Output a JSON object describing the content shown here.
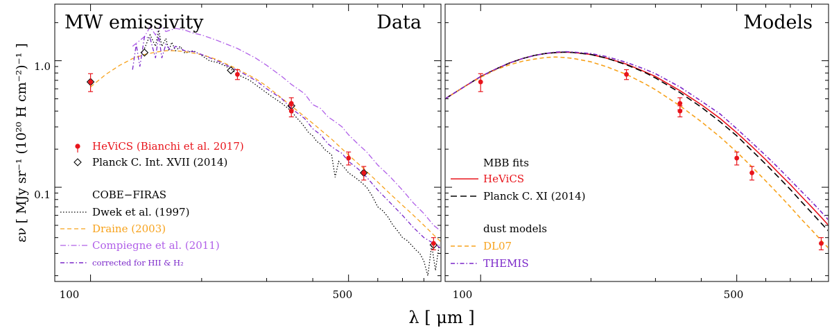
{
  "chart_data": [
    {
      "type": "line",
      "panel": "left",
      "title": "MW emissivity",
      "corner_label": "Data",
      "xlabel": "λ [ μm ]",
      "ylabel": "εν [ MJy sr⁻¹ (10²⁰ H cm⁻²)⁻¹ ]",
      "xscale": "log",
      "yscale": "log",
      "xlim": [
        80,
        890
      ],
      "ylim": [
        0.018,
        2.8
      ],
      "xticks": [
        {
          "v": 100,
          "label": "100"
        },
        {
          "v": 500,
          "label": "500"
        }
      ],
      "yticks": [
        {
          "v": 1.0,
          "label": "1.0"
        },
        {
          "v": 0.1,
          "label": "0.1"
        }
      ],
      "series": [
        {
          "name": "HeViCS (Bianchi et al. 2017)",
          "kind": "errorbar",
          "color": "#e8141b",
          "x": [
            100,
            250,
            350,
            350,
            500,
            550,
            850
          ],
          "y": [
            0.68,
            0.78,
            0.46,
            0.4,
            0.17,
            0.13,
            0.036
          ],
          "yerr": [
            0.11,
            0.07,
            0.05,
            0.04,
            0.02,
            0.016,
            0.004
          ]
        },
        {
          "name": "Planck C. Int. XVII (2014)",
          "kind": "diamond",
          "color": "#000000",
          "x": [
            100,
            140,
            240,
            350,
            550,
            850
          ],
          "y": [
            0.68,
            1.16,
            0.84,
            0.44,
            0.13,
            0.035
          ]
        },
        {
          "name": "Dwek et al. (1997)",
          "kind": "line",
          "dash": "1.5,2.5",
          "color": "#000000",
          "x": [
            140,
            145,
            150,
            153,
            156,
            160,
            163,
            166,
            170,
            175,
            180,
            190,
            200,
            210,
            220,
            230,
            240,
            250,
            270,
            290,
            310,
            330,
            350,
            360,
            370,
            380,
            390,
            400,
            410,
            420,
            430,
            440,
            450,
            460,
            470,
            480,
            490,
            500,
            520,
            540,
            560,
            580,
            600,
            620,
            640,
            660,
            680,
            700,
            720,
            740,
            760,
            780,
            800,
            820,
            840,
            860,
            880
          ],
          "y": [
            1.25,
            1.6,
            1.3,
            1.75,
            1.3,
            1.5,
            1.2,
            1.4,
            1.2,
            1.3,
            1.15,
            1.2,
            1.1,
            1.0,
            0.97,
            0.92,
            0.86,
            0.78,
            0.7,
            0.6,
            0.52,
            0.46,
            0.4,
            0.36,
            0.33,
            0.3,
            0.27,
            0.255,
            0.23,
            0.22,
            0.2,
            0.19,
            0.18,
            0.12,
            0.16,
            0.15,
            0.14,
            0.13,
            0.12,
            0.11,
            0.1,
            0.085,
            0.07,
            0.065,
            0.058,
            0.05,
            0.045,
            0.04,
            0.038,
            0.035,
            0.032,
            0.03,
            0.026,
            0.02,
            0.035,
            0.022,
            0.035
          ]
        },
        {
          "name": "Draine (2003)",
          "kind": "line",
          "dash": "6,4",
          "color": "#f7a21b",
          "x": [
            100,
            110,
            120,
            130,
            140,
            150,
            160,
            170,
            180,
            200,
            220,
            250,
            280,
            300,
            350,
            400,
            450,
            500,
            550,
            600,
            650,
            700,
            750,
            800,
            850,
            890
          ],
          "y": [
            0.62,
            0.78,
            0.92,
            1.04,
            1.12,
            1.17,
            1.2,
            1.2,
            1.18,
            1.12,
            1.02,
            0.86,
            0.72,
            0.63,
            0.44,
            0.32,
            0.24,
            0.18,
            0.14,
            0.11,
            0.088,
            0.072,
            0.06,
            0.05,
            0.042,
            0.037
          ]
        },
        {
          "name": "Compiegne et al. (2011)",
          "kind": "line",
          "dash": "8,3,1.5,3",
          "color": "#b05fe8",
          "x": [
            130,
            140,
            145,
            150,
            155,
            160,
            170,
            180,
            190,
            200,
            220,
            250,
            280,
            300,
            330,
            350,
            380,
            400,
            420,
            440,
            460,
            480,
            500,
            530,
            560,
            600,
            650,
            700,
            750,
            800,
            850,
            890
          ],
          "y": [
            1.3,
            1.55,
            1.85,
            1.6,
            1.9,
            1.7,
            1.8,
            1.75,
            1.65,
            1.6,
            1.45,
            1.25,
            1.05,
            0.92,
            0.75,
            0.65,
            0.55,
            0.45,
            0.42,
            0.36,
            0.33,
            0.3,
            0.26,
            0.22,
            0.19,
            0.15,
            0.12,
            0.095,
            0.075,
            0.062,
            0.05,
            0.045
          ]
        },
        {
          "name": "corrected for HII & H₂",
          "kind": "line",
          "dash": "6,3,1.5,3",
          "color": "#7a26c9",
          "x": [
            130,
            133,
            136,
            140,
            145,
            150,
            153,
            156,
            160,
            165,
            170,
            180,
            190,
            200,
            220,
            250,
            280,
            300,
            330,
            350,
            380,
            400,
            420,
            440,
            460,
            480,
            500,
            530,
            560,
            600,
            650,
            700,
            750,
            800,
            850,
            890
          ],
          "y": [
            0.85,
            1.35,
            0.9,
            1.55,
            1.5,
            1.05,
            1.6,
            1.05,
            1.35,
            1.2,
            1.3,
            1.2,
            1.18,
            1.12,
            1.0,
            0.84,
            0.7,
            0.6,
            0.5,
            0.42,
            0.35,
            0.29,
            0.26,
            0.22,
            0.2,
            0.185,
            0.16,
            0.14,
            0.12,
            0.095,
            0.075,
            0.06,
            0.048,
            0.04,
            0.036,
            0.033
          ]
        }
      ],
      "legend": {
        "hevics": "HeViCS (Bianchi et al. 2017)",
        "planck": "Planck C. Int. XVII (2014)",
        "cobe_header": "COBE−FIRAS",
        "dwek": "Dwek et al. (1997)",
        "draine": "Draine (2003)",
        "compiegne": "Compiegne et al. (2011)",
        "corrected": "corrected for HII & H₂"
      }
    },
    {
      "type": "line",
      "panel": "right",
      "corner_label": "Models",
      "xscale": "log",
      "yscale": "log",
      "xlim": [
        80,
        890
      ],
      "ylim": [
        0.018,
        2.8
      ],
      "xticks": [
        {
          "v": 100,
          "label": "100"
        },
        {
          "v": 500,
          "label": "500"
        }
      ],
      "series": [
        {
          "name": "HeViCS",
          "kind": "line",
          "dash": "",
          "color": "#e8141b",
          "x": [
            80,
            90,
            100,
            110,
            120,
            130,
            140,
            150,
            160,
            170,
            180,
            200,
            220,
            250,
            280,
            300,
            350,
            400,
            450,
            500,
            550,
            600,
            650,
            700,
            750,
            800,
            850,
            890
          ],
          "y": [
            0.5,
            0.62,
            0.75,
            0.86,
            0.96,
            1.04,
            1.1,
            1.14,
            1.16,
            1.17,
            1.16,
            1.12,
            1.05,
            0.94,
            0.82,
            0.75,
            0.58,
            0.45,
            0.35,
            0.27,
            0.21,
            0.165,
            0.13,
            0.105,
            0.085,
            0.07,
            0.058,
            0.05
          ]
        },
        {
          "name": "Planck C. XI (2014)",
          "kind": "line",
          "dash": "9,5",
          "color": "#000000",
          "x": [
            80,
            90,
            100,
            110,
            120,
            130,
            140,
            150,
            160,
            170,
            180,
            200,
            220,
            250,
            280,
            300,
            350,
            400,
            450,
            500,
            550,
            600,
            650,
            700,
            750,
            800,
            850,
            890
          ],
          "y": [
            0.5,
            0.62,
            0.75,
            0.86,
            0.96,
            1.04,
            1.1,
            1.14,
            1.16,
            1.17,
            1.16,
            1.12,
            1.05,
            0.93,
            0.81,
            0.73,
            0.56,
            0.43,
            0.33,
            0.255,
            0.195,
            0.152,
            0.12,
            0.096,
            0.077,
            0.063,
            0.052,
            0.045
          ]
        },
        {
          "name": "DL07",
          "kind": "line",
          "dash": "6,4",
          "color": "#f7a21b",
          "x": [
            80,
            90,
            100,
            110,
            120,
            130,
            140,
            150,
            160,
            170,
            180,
            200,
            220,
            250,
            280,
            300,
            350,
            400,
            450,
            500,
            550,
            600,
            650,
            700,
            750,
            800,
            850,
            890
          ],
          "y": [
            0.5,
            0.62,
            0.74,
            0.85,
            0.93,
            0.99,
            1.03,
            1.06,
            1.07,
            1.06,
            1.04,
            0.98,
            0.9,
            0.78,
            0.66,
            0.59,
            0.44,
            0.33,
            0.25,
            0.19,
            0.145,
            0.112,
            0.088,
            0.07,
            0.056,
            0.046,
            0.038,
            0.033
          ]
        },
        {
          "name": "THEMIS",
          "kind": "line",
          "dash": "6,3,1.5,3",
          "color": "#7a26c9",
          "x": [
            80,
            90,
            100,
            110,
            120,
            130,
            140,
            150,
            160,
            170,
            180,
            200,
            220,
            250,
            280,
            300,
            350,
            400,
            450,
            500,
            550,
            600,
            650,
            700,
            750,
            800,
            850,
            890
          ],
          "y": [
            0.5,
            0.62,
            0.75,
            0.86,
            0.96,
            1.04,
            1.1,
            1.14,
            1.17,
            1.18,
            1.17,
            1.14,
            1.08,
            0.97,
            0.86,
            0.79,
            0.62,
            0.48,
            0.38,
            0.29,
            0.225,
            0.178,
            0.142,
            0.114,
            0.093,
            0.077,
            0.064,
            0.055
          ]
        },
        {
          "name": "HeViCS data",
          "kind": "errorbar",
          "color": "#e8141b",
          "x": [
            100,
            250,
            350,
            350,
            500,
            550,
            850
          ],
          "y": [
            0.68,
            0.78,
            0.46,
            0.4,
            0.17,
            0.13,
            0.036
          ],
          "yerr": [
            0.11,
            0.07,
            0.05,
            0.04,
            0.02,
            0.016,
            0.004
          ]
        }
      ],
      "legend": {
        "mbb_header": "MBB fits",
        "hevics": "HeViCS",
        "planck": "Planck C. XI (2014)",
        "dust_header": "dust models",
        "dl07": "DL07",
        "themis": "THEMIS"
      }
    }
  ]
}
